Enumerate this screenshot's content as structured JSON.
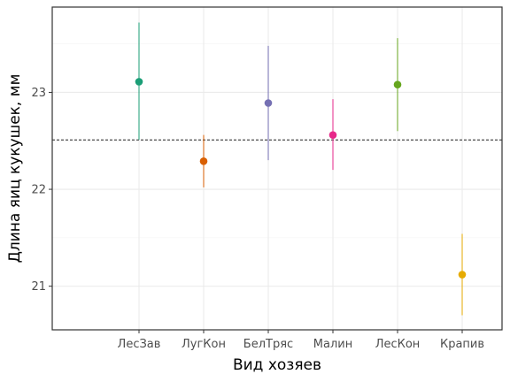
{
  "chart_data": {
    "type": "scatter",
    "title": "",
    "xlabel": "Вид хозяев",
    "ylabel": "Длина яиц кукушек, мм",
    "x_ticks": [
      "ЛесЗав",
      "ЛугКон",
      "БелТряс",
      "Малин",
      "ЛесКон",
      "Крапив"
    ],
    "y_ticks": [
      21,
      22,
      23
    ],
    "ylim": [
      20.55,
      23.88
    ],
    "reference_line": 22.51,
    "grid": true,
    "legend": "none",
    "points": [
      {
        "category": "ЛесЗав",
        "mean": 23.11,
        "lower": 22.51,
        "upper": 23.72,
        "color": "#1b9e77"
      },
      {
        "category": "ЛугКон",
        "mean": 22.29,
        "lower": 22.02,
        "upper": 22.56,
        "color": "#d95f02"
      },
      {
        "category": "БелТряс",
        "mean": 22.89,
        "lower": 22.3,
        "upper": 23.48,
        "color": "#7570b3"
      },
      {
        "category": "Малин",
        "mean": 22.56,
        "lower": 22.2,
        "upper": 22.93,
        "color": "#e7298a"
      },
      {
        "category": "ЛесКон",
        "mean": 23.08,
        "lower": 22.6,
        "upper": 23.56,
        "color": "#66a61e"
      },
      {
        "category": "Крапив",
        "mean": 21.12,
        "lower": 20.7,
        "upper": 21.54,
        "color": "#e6ab02"
      }
    ]
  }
}
